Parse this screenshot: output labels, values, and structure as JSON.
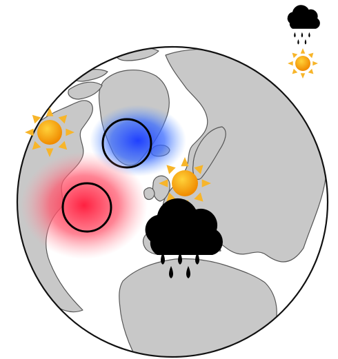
{
  "legend": {
    "rain_icon": "rain-cloud-icon",
    "sun_icon": "sun-icon"
  },
  "map": {
    "projection": "orthographic-north-polar",
    "ocean_color": "#ffffff",
    "land_color": "#c8c8c8",
    "coast_color": "#555555",
    "outline_color": "#111111",
    "pressure_centers": [
      {
        "name": "icelandic-low",
        "type": "low",
        "color": "#1f4fff"
      },
      {
        "name": "azores-high",
        "type": "high",
        "color": "#ff3a4e"
      }
    ],
    "weather_symbols": [
      {
        "name": "sun-east-canada",
        "icon": "sun-icon"
      },
      {
        "name": "sun-northern-europe",
        "icon": "sun-icon"
      },
      {
        "name": "rain-mediterranean",
        "icon": "rain-cloud-icon"
      }
    ],
    "colors": {
      "sun_core": "#f59a0c",
      "sun_rays": "#f7b52a",
      "cloud": "#000000"
    }
  }
}
